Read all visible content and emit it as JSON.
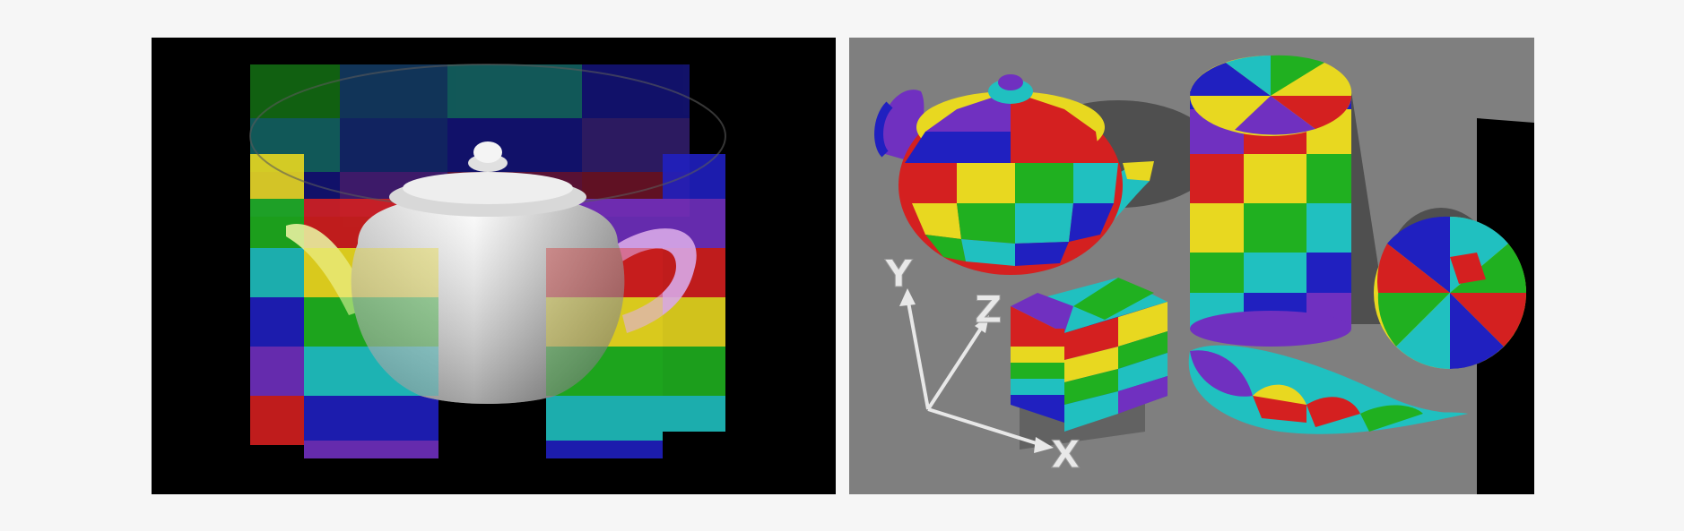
{
  "figure": {
    "left_panel": {
      "description_icon": "cylinder-texture-projection-teapot"
    },
    "right_panel": {
      "axes": {
        "x_label": "X",
        "y_label": "Y",
        "z_label": "Z"
      }
    }
  },
  "colors": {
    "background": "#f6f6f6",
    "panel_background": "#000000",
    "floor": "#808080",
    "texture_red": "#d42020",
    "texture_yellow": "#e8d820",
    "texture_green": "#20b020",
    "texture_cyan": "#20c0c0",
    "texture_blue": "#2020c0",
    "texture_purple": "#7030c0"
  }
}
